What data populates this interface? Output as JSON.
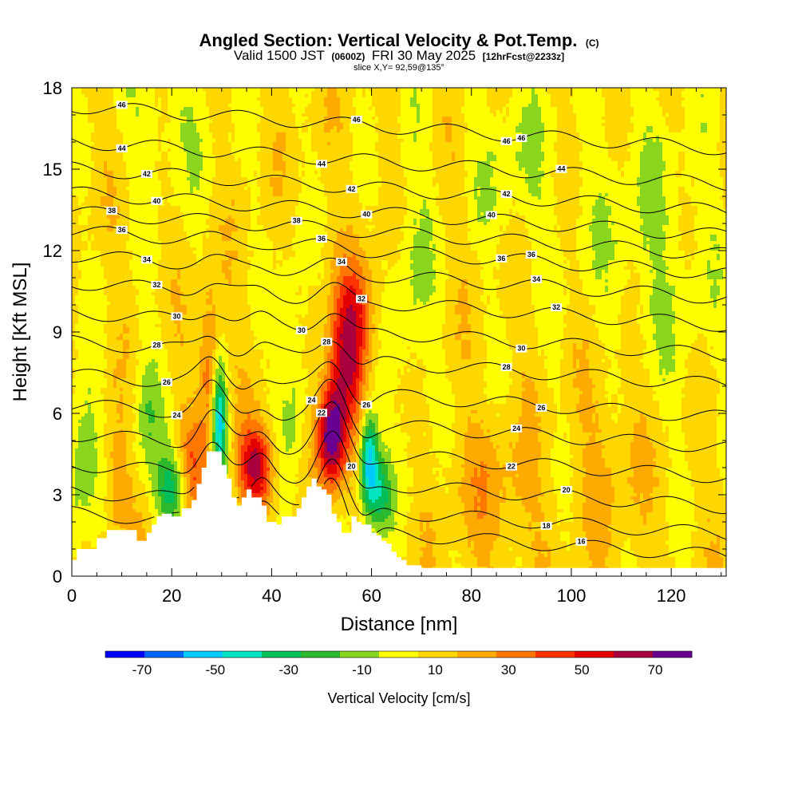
{
  "chart_data": {
    "type": "heatmap",
    "title": "Angled Section: Vertical Velocity & Pot.Temp.",
    "title_suffix": "(C)",
    "subtitle": {
      "valid": "Valid 1500 JST",
      "zulu": "(0600Z)",
      "date": "FRI 30 May 2025",
      "forecast": "[12hrFcst@2233z]"
    },
    "slice_label": "slice X,Y= 92,59@135°",
    "xlabel": "Distance [nm]",
    "ylabel": "Height [Kft MSL]",
    "xlim": [
      0,
      131
    ],
    "ylim": [
      0,
      18
    ],
    "x_ticks": [
      "0",
      "20",
      "40",
      "60",
      "80",
      "100",
      "120"
    ],
    "y_ticks": [
      "0",
      "3",
      "6",
      "9",
      "12",
      "15",
      "18"
    ],
    "colorbar": {
      "label": "Vertical Velocity [cm/s]",
      "tick_labels": [
        "-70",
        "-50",
        "-30",
        "-10",
        "10",
        "30",
        "50",
        "70"
      ],
      "levels": [
        -80,
        -70,
        -60,
        -50,
        -40,
        -30,
        -20,
        -10,
        0,
        10,
        20,
        30,
        40,
        50,
        60,
        70,
        80
      ],
      "colors": [
        "#0000ff",
        "#0066ff",
        "#00ccff",
        "#00e5c0",
        "#00bf5a",
        "#2db92d",
        "#8ad61f",
        "#ffff00",
        "#ffd700",
        "#ffaa00",
        "#ff7700",
        "#ff3300",
        "#e30000",
        "#a8003c",
        "#6a0091"
      ]
    },
    "terrain_profile": {
      "x": [
        0,
        1,
        1,
        5,
        5,
        7,
        7,
        13,
        13,
        15,
        15,
        16,
        16,
        17,
        17,
        18,
        18,
        20,
        20,
        22,
        22,
        24,
        24,
        25,
        25,
        26,
        26,
        27,
        27,
        28,
        28,
        30,
        30,
        31,
        31,
        32,
        32,
        33,
        33,
        34,
        34,
        35,
        35,
        36,
        36,
        38,
        38,
        39,
        39,
        41,
        41,
        42,
        42,
        45,
        45,
        46,
        46,
        47,
        47,
        48,
        48,
        49,
        49,
        50,
        50,
        51,
        51,
        52,
        52,
        53,
        53,
        54,
        54,
        56,
        56,
        57,
        57,
        58,
        58,
        60,
        60,
        61,
        61,
        62,
        62,
        63,
        63,
        64,
        64,
        65,
        65,
        66,
        66,
        67,
        67,
        70,
        70,
        71,
        71,
        131
      ],
      "y": [
        0.6,
        0.6,
        1.0,
        1.0,
        1.4,
        1.4,
        1.7,
        1.7,
        1.3,
        1.3,
        1.6,
        1.6,
        1.9,
        1.9,
        2.2,
        2.2,
        2.3,
        2.3,
        2.2,
        2.2,
        2.5,
        2.5,
        2.8,
        2.8,
        3.4,
        3.4,
        4.0,
        4.0,
        4.6,
        4.6,
        4.6,
        4.6,
        4.1,
        4.1,
        3.6,
        3.6,
        2.9,
        2.9,
        2.6,
        2.6,
        2.9,
        2.9,
        3.2,
        3.2,
        2.9,
        2.9,
        2.6,
        2.6,
        2.0,
        2.0,
        1.9,
        1.9,
        2.2,
        2.2,
        2.5,
        2.5,
        2.9,
        2.9,
        3.3,
        3.3,
        3.6,
        3.6,
        3.3,
        3.3,
        3.2,
        3.2,
        3.0,
        3.0,
        2.3,
        2.3,
        2.0,
        2.0,
        1.6,
        1.6,
        2.2,
        2.2,
        2.0,
        2.0,
        1.9,
        1.9,
        1.6,
        1.6,
        1.5,
        1.5,
        1.3,
        1.3,
        1.2,
        1.2,
        0.9,
        0.9,
        0.7,
        0.7,
        0.6,
        0.6,
        0.4,
        0.4,
        0.3,
        0.3,
        0.3,
        0.3
      ]
    },
    "vv_features": [
      {
        "name": "updraft-east-ridge",
        "x": 52,
        "z": 5.2,
        "w": 70,
        "sx": 2.0,
        "sz": 1.3
      },
      {
        "name": "updraft-east-ridge-upper",
        "x": 55,
        "z": 7.8,
        "w": 42,
        "sx": 2.6,
        "sz": 1.6
      },
      {
        "name": "updraft-east-ridge-top",
        "x": 57,
        "z": 9.8,
        "w": 26,
        "sx": 2.8,
        "sz": 1.4
      },
      {
        "name": "updraft-basin",
        "x": 37,
        "z": 4.0,
        "w": 52,
        "sx": 2.4,
        "sz": 1.1
      },
      {
        "name": "updraft-west-slope",
        "x": 27.5,
        "z": 7.5,
        "w": 30,
        "sx": 1.4,
        "sz": 2.0
      },
      {
        "name": "updraft-west",
        "x": 24,
        "z": 4.0,
        "w": 22,
        "sx": 2.0,
        "sz": 1.3
      },
      {
        "name": "updraft-far-west",
        "x": 9,
        "z": 3.5,
        "w": 18,
        "sx": 1.8,
        "sz": 1.6
      },
      {
        "name": "downdraft-lee-east",
        "x": 59.5,
        "z": 4.2,
        "w": -62,
        "sx": 1.3,
        "sz": 1.3
      },
      {
        "name": "downdraft-lee-east-2",
        "x": 62,
        "z": 3.0,
        "w": -30,
        "sx": 1.6,
        "sz": 1.0
      },
      {
        "name": "downdraft-ridge-west",
        "x": 29.5,
        "z": 5.6,
        "w": -58,
        "sx": 1.1,
        "sz": 1.5
      },
      {
        "name": "downdraft-west-valley",
        "x": 20,
        "z": 3.2,
        "w": -38,
        "sx": 2.2,
        "sz": 1.0
      },
      {
        "name": "downdraft-far-west",
        "x": 2,
        "z": 4.5,
        "w": -24,
        "sx": 2.2,
        "sz": 2.2
      },
      {
        "name": "downdraft-west-mid",
        "x": 15,
        "z": 6.0,
        "w": -18,
        "sx": 2.2,
        "sz": 1.8
      },
      {
        "name": "downdraft-center-col",
        "x": 44,
        "z": 7.5,
        "w": -18,
        "sx": 2.0,
        "sz": 3.0
      },
      {
        "name": "downdraft-east-col",
        "x": 68,
        "z": 11,
        "w": -14,
        "sx": 3.0,
        "sz": 4.0
      },
      {
        "name": "updraft-east-plain",
        "x": 85,
        "z": 3.0,
        "w": 12,
        "sx": 6.0,
        "sz": 2.0
      },
      {
        "name": "updraft-east-plain-2",
        "x": 108,
        "z": 5.0,
        "w": 11,
        "sx": 5.0,
        "sz": 3.0
      },
      {
        "name": "downdraft-upper-east",
        "x": 115,
        "z": 12.0,
        "w": -13,
        "sx": 10.0,
        "sz": 4.0
      },
      {
        "name": "downdraft-upper-center",
        "x": 88,
        "z": 15.5,
        "w": -12,
        "sx": 6.0,
        "sz": 2.5
      },
      {
        "name": "downdraft-upper-west",
        "x": 20,
        "z": 16.5,
        "w": -12,
        "sx": 6.0,
        "sz": 2.0
      }
    ],
    "theta_contours": [
      {
        "value": 16,
        "z0": 1.6,
        "labels": [
          {
            "x": 102,
            "text": "16"
          }
        ]
      },
      {
        "value": 18,
        "z0": 2.4,
        "labels": [
          {
            "x": 95,
            "text": "18"
          }
        ]
      },
      {
        "value": 20,
        "z0": 3.4,
        "labels": [
          {
            "x": 56,
            "text": "20"
          },
          {
            "x": 99,
            "text": "20"
          }
        ]
      },
      {
        "value": 22,
        "z0": 4.5,
        "labels": [
          {
            "x": 50,
            "text": "22"
          },
          {
            "x": 88,
            "text": "22"
          }
        ]
      },
      {
        "value": 24,
        "z0": 5.6,
        "labels": [
          {
            "x": 21,
            "text": "24"
          },
          {
            "x": 48,
            "text": "24"
          },
          {
            "x": 89,
            "text": "24"
          }
        ]
      },
      {
        "value": 26,
        "z0": 6.7,
        "labels": [
          {
            "x": 19,
            "text": "26"
          },
          {
            "x": 59,
            "text": "26"
          },
          {
            "x": 94,
            "text": "26"
          }
        ]
      },
      {
        "value": 28,
        "z0": 7.9,
        "labels": [
          {
            "x": 17,
            "text": "28"
          },
          {
            "x": 51,
            "text": "28"
          },
          {
            "x": 87,
            "text": "28"
          }
        ]
      },
      {
        "value": 30,
        "z0": 9.0,
        "labels": [
          {
            "x": 21,
            "text": "30"
          },
          {
            "x": 46,
            "text": "30"
          },
          {
            "x": 90,
            "text": "30"
          }
        ]
      },
      {
        "value": 32,
        "z0": 10.1,
        "labels": [
          {
            "x": 17,
            "text": "32"
          },
          {
            "x": 58,
            "text": "32"
          },
          {
            "x": 97,
            "text": "32"
          }
        ]
      },
      {
        "value": 34,
        "z0": 11.1,
        "labels": [
          {
            "x": 15,
            "text": "34"
          },
          {
            "x": 54,
            "text": "34"
          },
          {
            "x": 93,
            "text": "34"
          }
        ]
      },
      {
        "value": 36,
        "z0": 12.0,
        "labels": [
          {
            "x": 10,
            "text": "36"
          },
          {
            "x": 50,
            "text": "36"
          },
          {
            "x": 86,
            "text": "36"
          },
          {
            "x": 92,
            "text": "36"
          }
        ]
      },
      {
        "value": 38,
        "z0": 12.7,
        "labels": [
          {
            "x": 8,
            "text": "38"
          },
          {
            "x": 45,
            "text": "38"
          }
        ]
      },
      {
        "value": 40,
        "z0": 13.4,
        "labels": [
          {
            "x": 17,
            "text": "40"
          },
          {
            "x": 59,
            "text": "40"
          },
          {
            "x": 84,
            "text": "40"
          }
        ]
      },
      {
        "value": 42,
        "z0": 14.3,
        "labels": [
          {
            "x": 15,
            "text": "42"
          },
          {
            "x": 56,
            "text": "42"
          },
          {
            "x": 87,
            "text": "42"
          }
        ]
      },
      {
        "value": 44,
        "z0": 15.3,
        "labels": [
          {
            "x": 10,
            "text": "44"
          },
          {
            "x": 50,
            "text": "44"
          },
          {
            "x": 98,
            "text": "44"
          }
        ]
      },
      {
        "value": 46,
        "z0": 16.6,
        "labels": [
          {
            "x": 10,
            "text": "46"
          },
          {
            "x": 57,
            "text": "46"
          },
          {
            "x": 87,
            "text": "46"
          },
          {
            "x": 90,
            "text": "46"
          }
        ]
      }
    ]
  }
}
